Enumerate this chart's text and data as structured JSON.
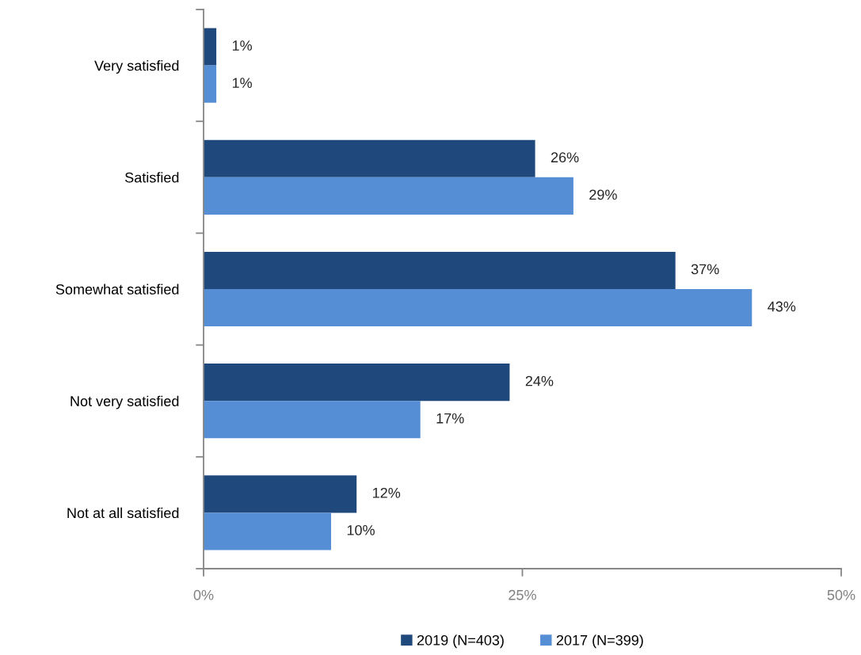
{
  "chart_data": {
    "type": "bar",
    "orientation": "horizontal",
    "categories": [
      "Very satisfied",
      "Satisfied",
      "Somewhat satisfied",
      "Not very satisfied",
      "Not at all satisfied"
    ],
    "series": [
      {
        "name": "2019 (N=403)",
        "color": "#1f497d",
        "values": [
          1,
          26,
          37,
          24,
          12
        ]
      },
      {
        "name": "2017 (N=399)",
        "color": "#558ed5",
        "values": [
          1,
          29,
          43,
          17,
          10
        ]
      }
    ],
    "xlim": [
      0,
      50
    ],
    "xticks": [
      {
        "value": 0,
        "label": "0%"
      },
      {
        "value": 25,
        "label": "25%"
      },
      {
        "value": 50,
        "label": "50%"
      }
    ],
    "value_labels": [
      [
        "1%",
        "26%",
        "37%",
        "24%",
        "12%"
      ],
      [
        "1%",
        "29%",
        "43%",
        "17%",
        "10%"
      ]
    ],
    "grid": false,
    "legend": "bottom"
  }
}
